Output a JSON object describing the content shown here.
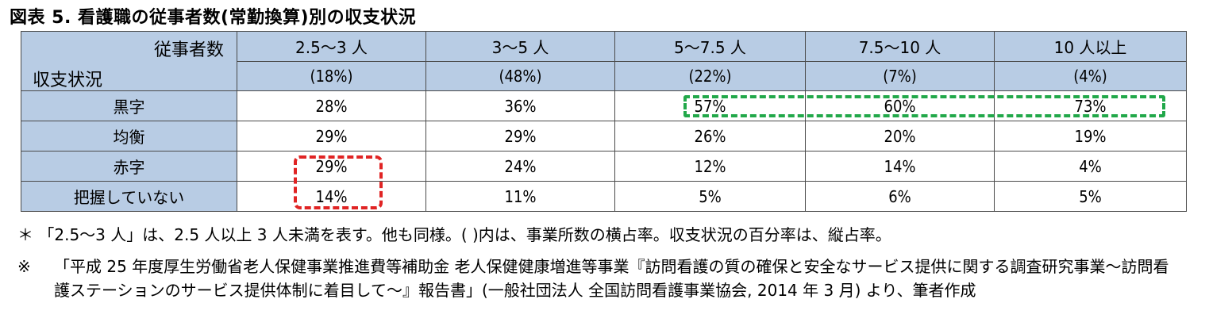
{
  "title": "図表 5.  看護職の従事者数(常勤換算)別の収支状況",
  "table": {
    "corner_top": "従事者数",
    "corner_bottom": "収支状況",
    "columns": [
      {
        "label": "2.5～3 人",
        "share": "(18%)"
      },
      {
        "label": "3～5 人",
        "share": "(48%)"
      },
      {
        "label": "5～7.5 人",
        "share": "(22%)"
      },
      {
        "label": "7.5～10 人",
        "share": "(7%)"
      },
      {
        "label": "10 人以上",
        "share": "(4%)"
      }
    ],
    "rows": [
      {
        "label": "黒字",
        "values": [
          "28%",
          "36%",
          "57%",
          "60%",
          "73%"
        ]
      },
      {
        "label": "均衡",
        "values": [
          "29%",
          "29%",
          "26%",
          "20%",
          "19%"
        ]
      },
      {
        "label": "赤字",
        "values": [
          "29%",
          "24%",
          "12%",
          "14%",
          "4%"
        ]
      },
      {
        "label": "把握していない",
        "values": [
          "14%",
          "11%",
          "5%",
          "6%",
          "5%"
        ]
      }
    ]
  },
  "highlights": {
    "green_color": "#22a84a",
    "red_color": "#e02424"
  },
  "notes": {
    "note1": "＊ 「2.5～3 人」は、2.5 人以上 3 人未満を表す。他も同様。( )内は、事業所数の横占率。収支状況の百分率は、縦占率。",
    "note2_mark": "※",
    "note2_text": "「平成 25 年度厚生労働省老人保健事業推進費等補助金 老人保健健康増進等事業『訪問看護の質の確保と安全なサービス提供に関する調査研究事業～訪問看護ステーションのサービス提供体制に着目して～』報告書」(一般社団法人 全国訪問看護事業協会, 2014 年 3 月) より、筆者作成"
  }
}
